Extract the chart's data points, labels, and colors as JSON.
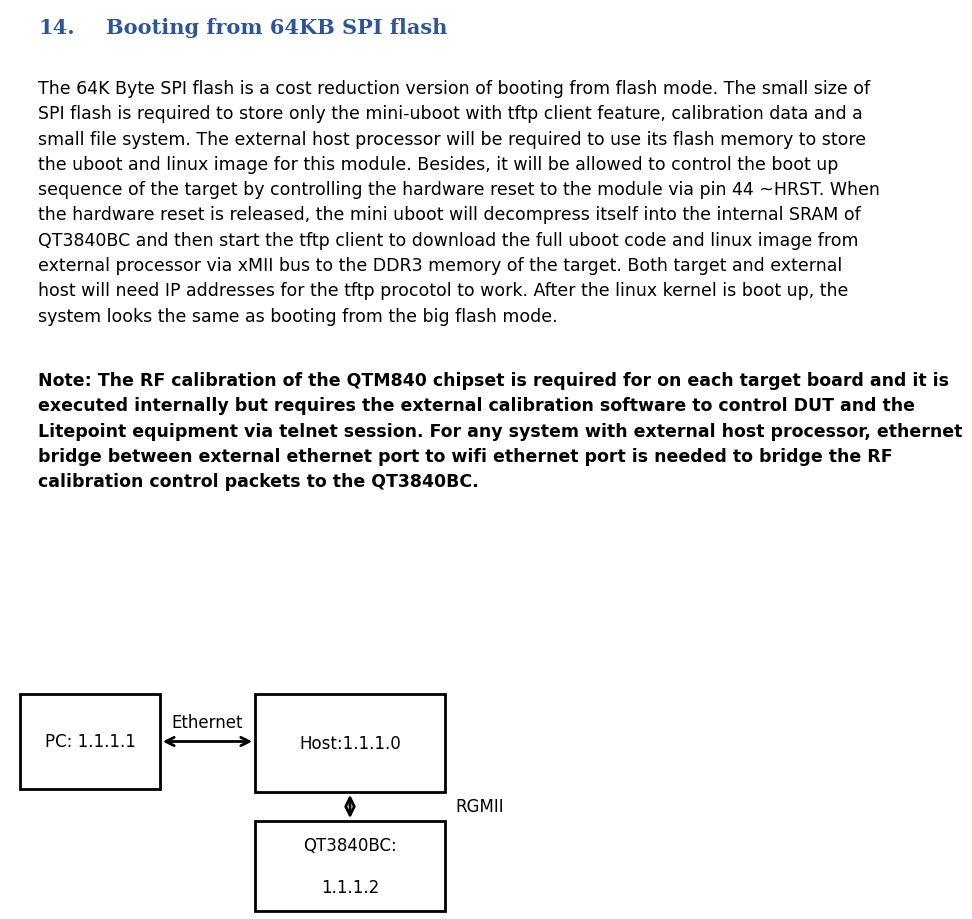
{
  "title_number": "14.",
  "title_text": "Booting from 64KB SPI flash",
  "title_color": "#2E5597",
  "title_fontsize": 15,
  "body_fontsize": 12.5,
  "note_fontsize": 12.5,
  "background_color": "#ffffff",
  "box_pc_label": "PC: 1.1.1.1",
  "box_host_label": "Host:1.1.1.0",
  "box_qt_label": "QT3840BC:\n\n1.1.1.2",
  "arrow_label_eth": "Ethernet",
  "arrow_label_rgmii": "RGMII",
  "body_lines": [
    "The 64K Byte SPI flash is a cost reduction version of booting from flash mode. The small size of",
    "SPI flash is required to store only the mini-uboot with tftp client feature, calibration data and a",
    "small file system. The external host processor will be required to use its flash memory to store",
    "the uboot and linux image for this module. Besides, it will be allowed to control the boot up",
    "sequence of the target by controlling the hardware reset to the module via pin 44 ~HRST. When",
    "the hardware reset is released, the mini uboot will decompress itself into the internal SRAM of",
    "QT3840BC and then start the tftp client to download the full uboot code and linux image from",
    "external processor via xMII bus to the DDR3 memory of the target. Both target and external",
    "host will need IP addresses for the tftp procotol to work. After the linux kernel is boot up, the",
    "system looks the same as booting from the big flash mode."
  ],
  "note_lines": [
    "Note: The RF calibration of the QTM840 chipset is required for on each target board and it is",
    "executed internally but requires the external calibration software to control DUT and the",
    "Litepoint equipment via telnet session. For any system with external host processor, ethernet",
    "bridge between external ethernet port to wifi ethernet port is needed to bridge the RF",
    "calibration control packets to the QT3840BC."
  ]
}
